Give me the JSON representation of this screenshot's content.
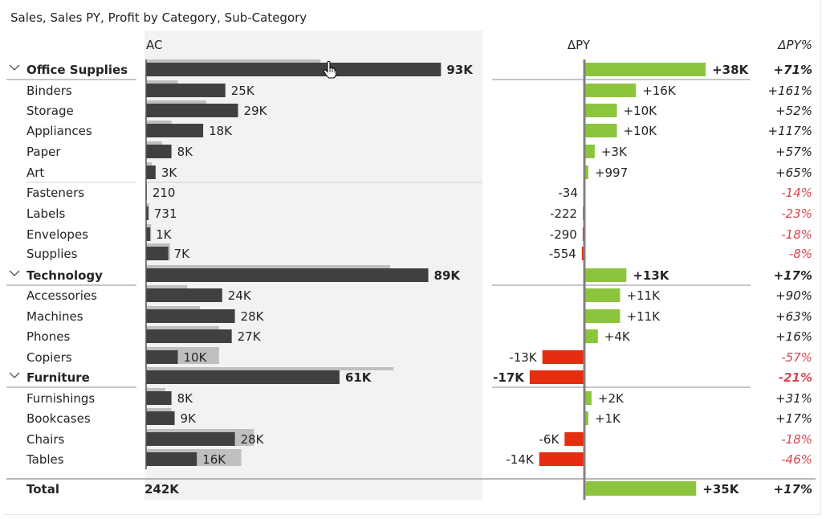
{
  "title": "Sales, Sales PY, Profit by Category, Sub-Category",
  "chart_data": {
    "type": "bar",
    "title": "Sales, Sales PY, Profit by Category, Sub-Category",
    "columns": {
      "ac": "AC",
      "dpy": "ΔPY",
      "dpyp": "ΔPY%"
    },
    "colors": {
      "ac": "#404040",
      "py": "#bfbfbf",
      "positive": "#8cc43e",
      "negative": "#e52e0f",
      "panel": "#f2f2f2",
      "negative_text": "#d64550"
    },
    "rows": [
      {
        "name": "Office Supplies",
        "level": "category",
        "ac": 93,
        "py": 55,
        "ac_label": "93K",
        "dpy": 38,
        "dpy_label": "+38K",
        "dpyp_label": "+71%"
      },
      {
        "name": "Binders",
        "level": "sub",
        "ac": 25,
        "py": 10,
        "ac_label": "25K",
        "dpy": 16,
        "dpy_label": "+16K",
        "dpyp_label": "+161%"
      },
      {
        "name": "Storage",
        "level": "sub",
        "ac": 29,
        "py": 19,
        "ac_label": "29K",
        "dpy": 10,
        "dpy_label": "+10K",
        "dpyp_label": "+52%"
      },
      {
        "name": "Appliances",
        "level": "sub",
        "ac": 18,
        "py": 8,
        "ac_label": "18K",
        "dpy": 10,
        "dpy_label": "+10K",
        "dpyp_label": "+117%"
      },
      {
        "name": "Paper",
        "level": "sub",
        "ac": 8,
        "py": 5,
        "ac_label": "8K",
        "dpy": 3,
        "dpy_label": "+3K",
        "dpyp_label": "+57%"
      },
      {
        "name": "Art",
        "level": "sub",
        "ac": 3,
        "py": 1.8,
        "ac_label": "3K",
        "dpy": 0.997,
        "dpy_label": "+997",
        "dpyp_label": "+65%"
      },
      {
        "name": "Fasteners",
        "level": "sub",
        "ac": 0.21,
        "py": 0.244,
        "ac_label": "210",
        "dpy": -0.034,
        "dpy_label": "-34",
        "dpyp_label": "-14%"
      },
      {
        "name": "Labels",
        "level": "sub",
        "ac": 0.731,
        "py": 0.953,
        "ac_label": "731",
        "dpy": -0.222,
        "dpy_label": "-222",
        "dpyp_label": "-23%"
      },
      {
        "name": "Envelopes",
        "level": "sub",
        "ac": 1.3,
        "py": 1.59,
        "ac_label": "1K",
        "dpy": -0.29,
        "dpy_label": "-290",
        "dpyp_label": "-18%"
      },
      {
        "name": "Supplies",
        "level": "sub",
        "ac": 7,
        "py": 7.55,
        "ac_label": "7K",
        "dpy": -0.554,
        "dpy_label": "-554",
        "dpyp_label": "-8%"
      },
      {
        "name": "Technology",
        "level": "category",
        "ac": 89,
        "py": 77,
        "ac_label": "89K",
        "dpy": 13,
        "dpy_label": "+13K",
        "dpyp_label": "+17%"
      },
      {
        "name": "Accessories",
        "level": "sub",
        "ac": 24,
        "py": 13,
        "ac_label": "24K",
        "dpy": 11,
        "dpy_label": "+11K",
        "dpyp_label": "+90%"
      },
      {
        "name": "Machines",
        "level": "sub",
        "ac": 28,
        "py": 17,
        "ac_label": "28K",
        "dpy": 11,
        "dpy_label": "+11K",
        "dpyp_label": "+63%"
      },
      {
        "name": "Phones",
        "level": "sub",
        "ac": 27,
        "py": 23,
        "ac_label": "27K",
        "dpy": 4,
        "dpy_label": "+4K",
        "dpyp_label": "+16%"
      },
      {
        "name": "Copiers",
        "level": "sub",
        "ac": 10,
        "py": 23,
        "ac_label": "10K",
        "dpy": -13,
        "dpy_label": "-13K",
        "dpyp_label": "-57%"
      },
      {
        "name": "Furniture",
        "level": "category",
        "ac": 61,
        "py": 78,
        "ac_label": "61K",
        "dpy": -17,
        "dpy_label": "-17K",
        "dpyp_label": "-21%"
      },
      {
        "name": "Furnishings",
        "level": "sub",
        "ac": 8,
        "py": 6,
        "ac_label": "8K",
        "dpy": 2,
        "dpy_label": "+2K",
        "dpyp_label": "+31%"
      },
      {
        "name": "Bookcases",
        "level": "sub",
        "ac": 9,
        "py": 8,
        "ac_label": "9K",
        "dpy": 1,
        "dpy_label": "+1K",
        "dpyp_label": "+17%"
      },
      {
        "name": "Chairs",
        "level": "sub",
        "ac": 28,
        "py": 34,
        "ac_label": "28K",
        "dpy": -6,
        "dpy_label": "-6K",
        "dpyp_label": "-18%"
      },
      {
        "name": "Tables",
        "level": "sub",
        "ac": 16,
        "py": 30,
        "ac_label": "16K",
        "dpy": -14,
        "dpy_label": "-14K",
        "dpyp_label": "-46%"
      }
    ],
    "total": {
      "name": "Total",
      "ac_label": "242K",
      "dpy": 35,
      "dpy_label": "+35K",
      "dpyp_label": "+17%"
    }
  }
}
